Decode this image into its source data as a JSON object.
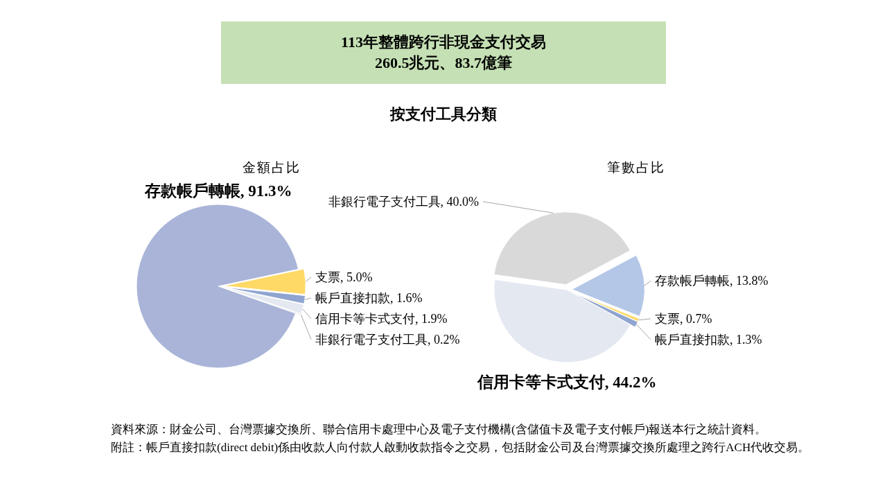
{
  "chart_data": [
    {
      "type": "other",
      "title": "113年整體跨行非現金支付交易\n260.5兆元、83.7億筆",
      "subtitle": "按支付工具分類",
      "annotations": [
        "資料來源：財金公司、台灣票據交換所、聯合信用卡處理中心及電子支付機構(含儲值卡及電子支付帳戶)報送本行之統計資料。",
        "附註：帳戶直接扣款(direct debit)係由收款人向付款人啟動收款指令之交易，包括財金公司及台灣票據交換所處理之跨行ACH代收交易。"
      ]
    },
    {
      "type": "pie",
      "title": "金額占比",
      "categories": [
        "支票",
        "帳戶直接扣款",
        "信用卡等卡式支付",
        "非銀行電子支付工具",
        "存款帳戶轉帳"
      ],
      "values": [
        5.0,
        1.6,
        1.9,
        0.2,
        91.3
      ],
      "colors": [
        "#ffd966",
        "#8fa4d0",
        "#e4e8f1",
        "#cfd3da",
        "#a9b4d8"
      ],
      "value_labels": [
        ", 5.0%",
        ", 1.6%",
        ", 1.9%",
        ", 0.2%",
        ", 91.3%"
      ]
    },
    {
      "type": "pie",
      "title": "筆數占比",
      "categories": [
        "存款帳戶轉帳",
        "支票",
        "帳戶直接扣款",
        "信用卡等卡式支付",
        "非銀行電子支付工具"
      ],
      "values": [
        13.8,
        0.7,
        1.3,
        44.2,
        40.0
      ],
      "colors": [
        "#b4c7e7",
        "#ffd966",
        "#8fa4d0",
        "#e4e8f1",
        "#d9d9d9"
      ],
      "value_labels": [
        ", 13.8%",
        ", 0.7%",
        ", 1.3%",
        ", 44.2%",
        ", 40.0%"
      ]
    }
  ]
}
